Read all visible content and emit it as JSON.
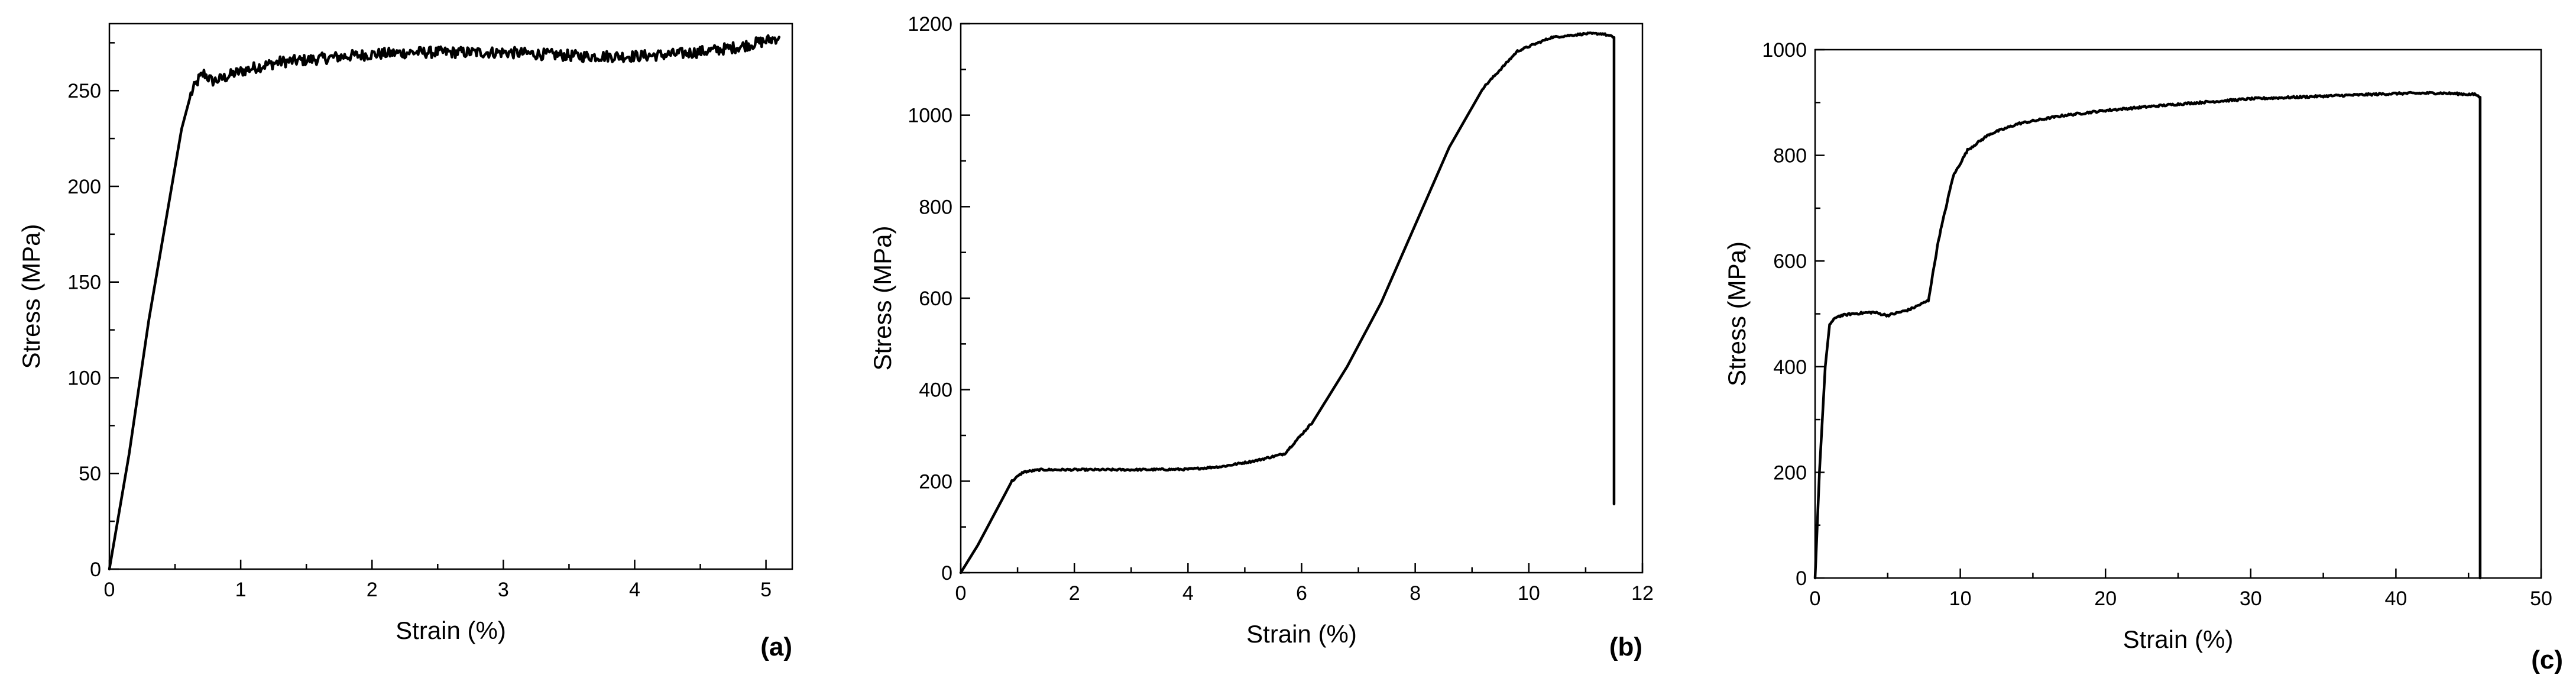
{
  "chart_data": [
    {
      "type": "line",
      "panel_label": "(a)",
      "xlabel": "Strain (%)",
      "ylabel": "Stress (MPa)",
      "xlim": [
        0,
        5.2
      ],
      "ylim": [
        0,
        285
      ],
      "xticks": [
        0,
        1,
        2,
        3,
        4,
        5
      ],
      "yticks": [
        0,
        50,
        100,
        150,
        200,
        250
      ],
      "grid": false,
      "noise": 3,
      "series": [
        {
          "x": [
            0,
            0.05,
            0.15,
            0.3,
            0.45,
            0.55,
            0.62,
            0.68,
            0.72,
            0.78,
            0.85,
            0.95,
            1.1,
            1.3,
            1.5,
            1.8,
            2.0,
            2.3,
            2.6,
            3.0,
            3.3,
            3.6,
            4.0,
            4.3,
            4.6,
            4.8,
            5.0,
            5.1
          ],
          "y": [
            0,
            20,
            60,
            130,
            190,
            230,
            248,
            256,
            259,
            255,
            256,
            259,
            262,
            265,
            266,
            268,
            269,
            270,
            270,
            270,
            269,
            268,
            268,
            269,
            271,
            273,
            276,
            278
          ]
        }
      ]
    },
    {
      "type": "line",
      "panel_label": "(b)",
      "xlabel": "Strain (%)",
      "ylabel": "Stress (MPa)",
      "xlim": [
        0,
        12
      ],
      "ylim": [
        0,
        1200
      ],
      "xticks": [
        0,
        2,
        4,
        6,
        8,
        10,
        12
      ],
      "yticks": [
        0,
        200,
        400,
        600,
        800,
        1000,
        1200
      ],
      "grid": false,
      "noise": 2,
      "series": [
        {
          "x": [
            0,
            0.3,
            0.6,
            0.9,
            1.1,
            1.4,
            2,
            3,
            4,
            4.6,
            5.2,
            5.7,
            6.2,
            6.8,
            7.4,
            8.0,
            8.6,
            9.2,
            9.8,
            10.4,
            11.0,
            11.3,
            11.5,
            11.5
          ],
          "y": [
            0,
            60,
            130,
            200,
            220,
            225,
            225,
            225,
            226,
            232,
            245,
            260,
            330,
            450,
            590,
            760,
            930,
            1060,
            1140,
            1170,
            1178,
            1178,
            1170,
            150
          ]
        }
      ]
    },
    {
      "type": "line",
      "panel_label": "(c)",
      "xlabel": "Strain (%)",
      "ylabel": "Stress (MPa)",
      "xlim": [
        0,
        50
      ],
      "ylim": [
        0,
        1000
      ],
      "xticks": [
        0,
        10,
        20,
        30,
        40,
        50
      ],
      "yticks": [
        0,
        200,
        400,
        600,
        800,
        1000
      ],
      "grid": false,
      "noise": 2,
      "series": [
        {
          "x": [
            0,
            0.3,
            0.7,
            1.0,
            1.5,
            2.5,
            4,
            5,
            6.5,
            7.8,
            8.5,
            9.5,
            10.5,
            12,
            14,
            17,
            20,
            25,
            30,
            35,
            40,
            43,
            45.5,
            45.8,
            45.8
          ],
          "y": [
            0,
            200,
            400,
            480,
            495,
            500,
            503,
            497,
            508,
            525,
            640,
            760,
            810,
            840,
            860,
            875,
            885,
            897,
            907,
            912,
            917,
            918,
            915,
            910,
            0
          ]
        }
      ]
    }
  ]
}
